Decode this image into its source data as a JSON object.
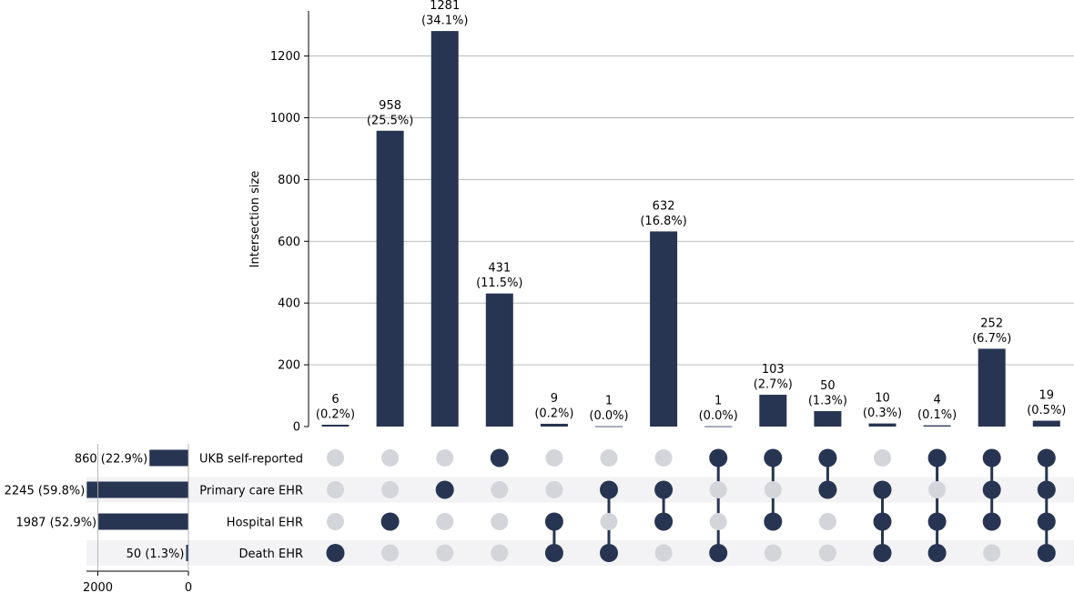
{
  "chart_data": {
    "type": "upset",
    "ylabel": "Intersection size",
    "ylim": [
      0,
      1350
    ],
    "yticks": [
      0,
      200,
      400,
      600,
      800,
      1000,
      1200
    ],
    "grid": true,
    "sets": [
      {
        "name": "UKB self-reported",
        "size": 860,
        "label": "860 (22.9%)"
      },
      {
        "name": "Primary care EHR",
        "size": 2245,
        "label": "2245 (59.8%)"
      },
      {
        "name": "Hospital EHR",
        "size": 1987,
        "label": "1987 (52.9%)"
      },
      {
        "name": "Death EHR",
        "size": 50,
        "label": "50 (1.3%)"
      }
    ],
    "set_size_ticks": [
      "2000",
      "0"
    ],
    "set_size_range": [
      0,
      2245
    ],
    "intersections": [
      {
        "count": 6,
        "label": "6\n(0.2%)",
        "members": [
          0,
          0,
          0,
          1
        ]
      },
      {
        "count": 958,
        "label": "958\n(25.5%)",
        "members": [
          0,
          0,
          1,
          0
        ]
      },
      {
        "count": 1281,
        "label": "1281\n(34.1%)",
        "members": [
          0,
          1,
          0,
          0
        ]
      },
      {
        "count": 431,
        "label": "431\n(11.5%)",
        "members": [
          1,
          0,
          0,
          0
        ]
      },
      {
        "count": 9,
        "label": "9\n(0.2%)",
        "members": [
          0,
          0,
          1,
          1
        ]
      },
      {
        "count": 1,
        "label": "1\n(0.0%)",
        "members": [
          0,
          1,
          0,
          1
        ]
      },
      {
        "count": 632,
        "label": "632\n(16.8%)",
        "members": [
          0,
          1,
          1,
          0
        ]
      },
      {
        "count": 1,
        "label": "1\n(0.0%)",
        "members": [
          1,
          0,
          0,
          1
        ]
      },
      {
        "count": 103,
        "label": "103\n(2.7%)",
        "members": [
          1,
          0,
          1,
          0
        ]
      },
      {
        "count": 50,
        "label": "50\n(1.3%)",
        "members": [
          1,
          1,
          0,
          0
        ]
      },
      {
        "count": 10,
        "label": "10\n(0.3%)",
        "members": [
          0,
          1,
          1,
          1
        ]
      },
      {
        "count": 4,
        "label": "4\n(0.1%)",
        "members": [
          1,
          0,
          1,
          1
        ]
      },
      {
        "count": 252,
        "label": "252\n(6.7%)",
        "members": [
          1,
          1,
          1,
          0
        ]
      },
      {
        "count": 19,
        "label": "19\n(0.5%)",
        "members": [
          1,
          1,
          1,
          1
        ]
      }
    ],
    "colors": {
      "bar": "#283552",
      "dot_inactive": "#d3d5da",
      "row_shade": "#f3f3f5",
      "grid": "#b0b0b0"
    }
  }
}
